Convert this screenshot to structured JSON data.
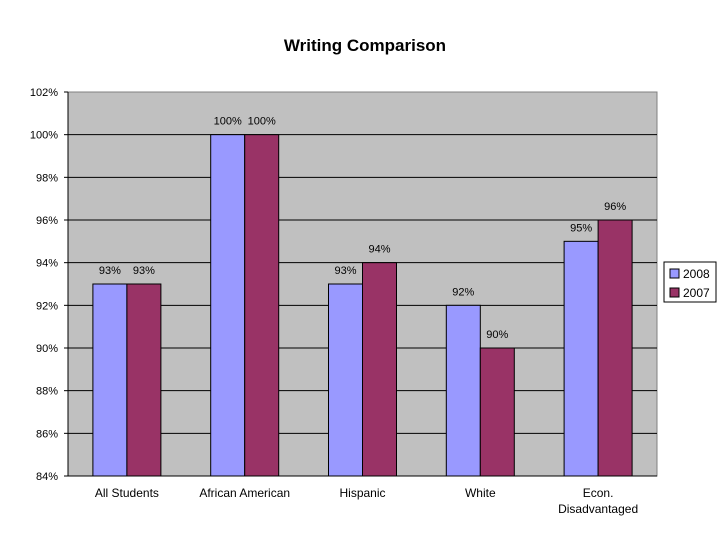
{
  "chart_data": {
    "type": "bar",
    "title": "Writing Comparison",
    "categories": [
      "All Students",
      "African American",
      "Hispanic",
      "White",
      "Econ. Disadvantaged"
    ],
    "series": [
      {
        "name": "2008",
        "values": [
          93,
          100,
          93,
          92,
          95
        ],
        "color": "#9999ff"
      },
      {
        "name": "2007",
        "values": [
          93,
          100,
          94,
          90,
          96
        ],
        "color": "#993366"
      }
    ],
    "ylim": [
      84,
      102
    ],
    "ytick_step": 2,
    "ytick_suffix": "%",
    "data_labels": true,
    "grid": true,
    "plot_background": "#c0c0c0",
    "legend_position": "right"
  }
}
